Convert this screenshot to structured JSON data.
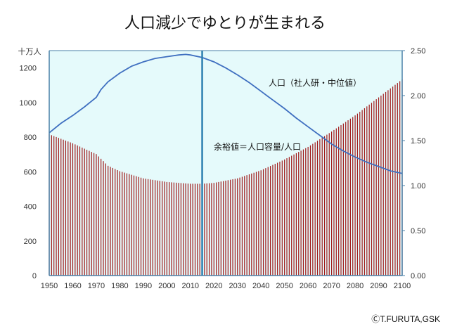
{
  "chart_data": {
    "type": "bar+line",
    "title": "人口減少でゆとりが生まれる",
    "left_axis": {
      "unit": "十万人",
      "ticks": [
        0,
        200,
        400,
        600,
        800,
        1000,
        1200
      ],
      "range": [
        0,
        1300
      ]
    },
    "right_axis": {
      "ticks": [
        "0.00",
        "0.50",
        "1.00",
        "1.50",
        "2.00",
        "2.50"
      ],
      "range": [
        0,
        2.5
      ]
    },
    "x_axis": {
      "ticks": [
        1950,
        1960,
        1970,
        1980,
        1990,
        2000,
        2010,
        2020,
        2030,
        2040,
        2050,
        2060,
        2070,
        2080,
        2090,
        2100
      ],
      "range": [
        1950,
        2100
      ]
    },
    "marker_year": 2015,
    "population_label": "人口（社人研・中位値）",
    "population": {
      "x": [
        1950,
        1955,
        1960,
        1965,
        1970,
        1972,
        1975,
        1980,
        1985,
        1990,
        1995,
        2000,
        2005,
        2008,
        2010,
        2015,
        2020,
        2025,
        2030,
        2035,
        2040,
        2045,
        2050,
        2055,
        2060,
        2065,
        2070,
        2075,
        2080,
        2085,
        2090,
        2095,
        2100
      ],
      "values": [
        825,
        880,
        925,
        975,
        1030,
        1075,
        1120,
        1170,
        1210,
        1235,
        1255,
        1265,
        1275,
        1278,
        1275,
        1260,
        1235,
        1200,
        1160,
        1115,
        1065,
        1015,
        965,
        910,
        860,
        810,
        760,
        720,
        685,
        655,
        630,
        605,
        590
      ]
    },
    "ratio_label": "余裕値＝人口容量/人口",
    "ratio": {
      "x": [
        1950,
        1960,
        1970,
        1975,
        1980,
        1990,
        2000,
        2010,
        2015,
        2020,
        2030,
        2040,
        2050,
        2060,
        2070,
        2080,
        2090,
        2100
      ],
      "values": [
        1.57,
        1.47,
        1.35,
        1.22,
        1.16,
        1.08,
        1.04,
        1.02,
        1.02,
        1.03,
        1.08,
        1.17,
        1.29,
        1.43,
        1.6,
        1.78,
        1.98,
        2.18
      ]
    },
    "colors": {
      "bar": "#a01818",
      "line": "#3f6fc0",
      "plot_bg": "#e5fafb",
      "axis": "#4a80a8",
      "marker": "#2c7fb0"
    },
    "copyright": "ⒸT.FURUTA,GSK"
  }
}
